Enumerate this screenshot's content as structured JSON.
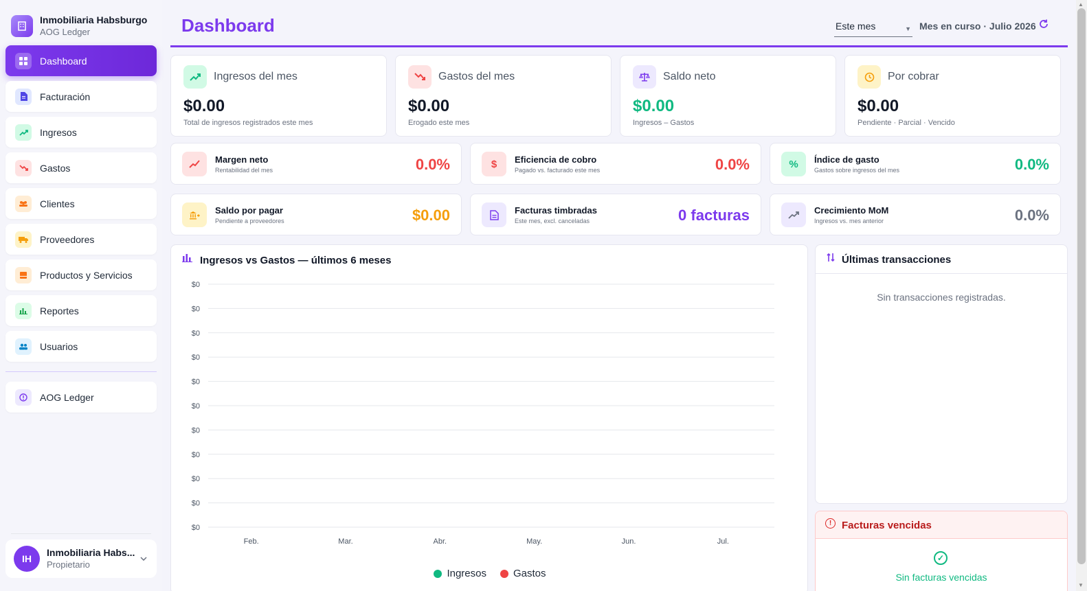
{
  "brand": {
    "name": "Inmobiliaria Habsburgo",
    "subtitle": "AOG Ledger",
    "logo_icon": "building-icon"
  },
  "sidebar": {
    "items": [
      {
        "label": "Dashboard",
        "icon": "grid-icon",
        "active": true
      },
      {
        "label": "Facturación",
        "icon": "document-icon"
      },
      {
        "label": "Ingresos",
        "icon": "trend-up-icon"
      },
      {
        "label": "Gastos",
        "icon": "trend-down-icon"
      },
      {
        "label": "Clientes",
        "icon": "people-icon"
      },
      {
        "label": "Proveedores",
        "icon": "truck-icon"
      },
      {
        "label": "Productos y Servicios",
        "icon": "box-icon"
      },
      {
        "label": "Reportes",
        "icon": "bar-chart-icon"
      },
      {
        "label": "Usuarios",
        "icon": "users-icon"
      }
    ],
    "extra": {
      "label": "AOG Ledger",
      "icon": "info-icon"
    }
  },
  "user": {
    "initials": "IH",
    "name": "Inmobiliaria Habs...",
    "role": "Propietario"
  },
  "header": {
    "title": "Dashboard",
    "period_select": "Este mes",
    "period_label": "Mes en curso · Julio 2026"
  },
  "kpis": [
    {
      "title": "Ingresos del mes",
      "value": "$0.00",
      "sub": "Total de ingresos registrados este mes",
      "icon": "trend-up-icon",
      "color": "#10b981"
    },
    {
      "title": "Gastos del mes",
      "value": "$0.00",
      "sub": "Erogado este mes",
      "icon": "trend-down-icon",
      "color": "#ef4444"
    },
    {
      "title": "Saldo neto",
      "value": "$0.00",
      "sub": "Ingresos – Gastos",
      "icon": "scale-icon",
      "color": "#7c3aed"
    },
    {
      "title": "Por cobrar",
      "value": "$0.00",
      "sub": "Pendiente · Parcial · Vencido",
      "icon": "clock-icon",
      "color": "#f59e0b"
    }
  ],
  "metrics": [
    {
      "title": "Margen neto",
      "sub": "Rentabilidad del mes",
      "value": "0.0%",
      "icon": "trend-line-icon"
    },
    {
      "title": "Eficiencia de cobro",
      "sub": "Pagado vs. facturado este mes",
      "value": "0.0%",
      "icon": "dollar-icon"
    },
    {
      "title": "Índice de gasto",
      "sub": "Gastos sobre ingresos del mes",
      "value": "0.0%",
      "icon": "percent-icon"
    },
    {
      "title": "Saldo por pagar",
      "sub": "Pendiente a proveedores",
      "value": "$0.00",
      "icon": "bank-icon"
    },
    {
      "title": "Facturas timbradas",
      "sub": "Este mes, excl. canceladas",
      "value": "0 facturas",
      "icon": "invoice-icon"
    },
    {
      "title": "Crecimiento MoM",
      "sub": "Ingresos vs. mes anterior",
      "value": "0.0%",
      "icon": "growth-icon"
    }
  ],
  "chart_data": {
    "type": "bar",
    "title": "Ingresos vs Gastos — últimos 6 meses",
    "categories": [
      "Feb.",
      "Mar.",
      "Abr.",
      "May.",
      "Jun.",
      "Jul."
    ],
    "y_tick_labels": [
      "$0",
      "$0",
      "$0",
      "$0",
      "$0",
      "$0",
      "$0",
      "$0",
      "$0",
      "$0",
      "$0"
    ],
    "series": [
      {
        "name": "Ingresos",
        "values": [
          0,
          0,
          0,
          0,
          0,
          0
        ],
        "color": "#10b981"
      },
      {
        "name": "Gastos",
        "values": [
          0,
          0,
          0,
          0,
          0,
          0
        ],
        "color": "#ef4444"
      }
    ],
    "grid": true,
    "legend": "bottom"
  },
  "transactions": {
    "title": "Últimas transacciones",
    "empty": "Sin transacciones registradas."
  },
  "overdue": {
    "title": "Facturas vencidas",
    "empty": "Sin facturas vencidas"
  }
}
